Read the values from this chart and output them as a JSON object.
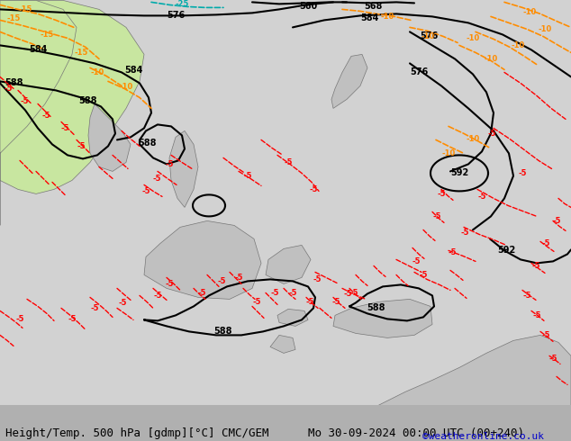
{
  "title_left": "Height/Temp. 500 hPa [gdmp][°C] CMC/GEM",
  "title_right": "Mo 30-09-2024 00:00 UTC (00+240)",
  "credit": "©weatheronline.co.uk",
  "bg_ocean": "#d2d2d2",
  "land_green": "#c8e6a0",
  "land_gray": "#c0c0c0",
  "contour_black": "#000000",
  "temp_red": "#ff0000",
  "temp_orange": "#ff8c00",
  "temp_cyan": "#00aaaa",
  "font_size_title": 9,
  "font_size_credit": 8,
  "fig_width": 6.34,
  "fig_height": 4.9,
  "dpi": 100
}
